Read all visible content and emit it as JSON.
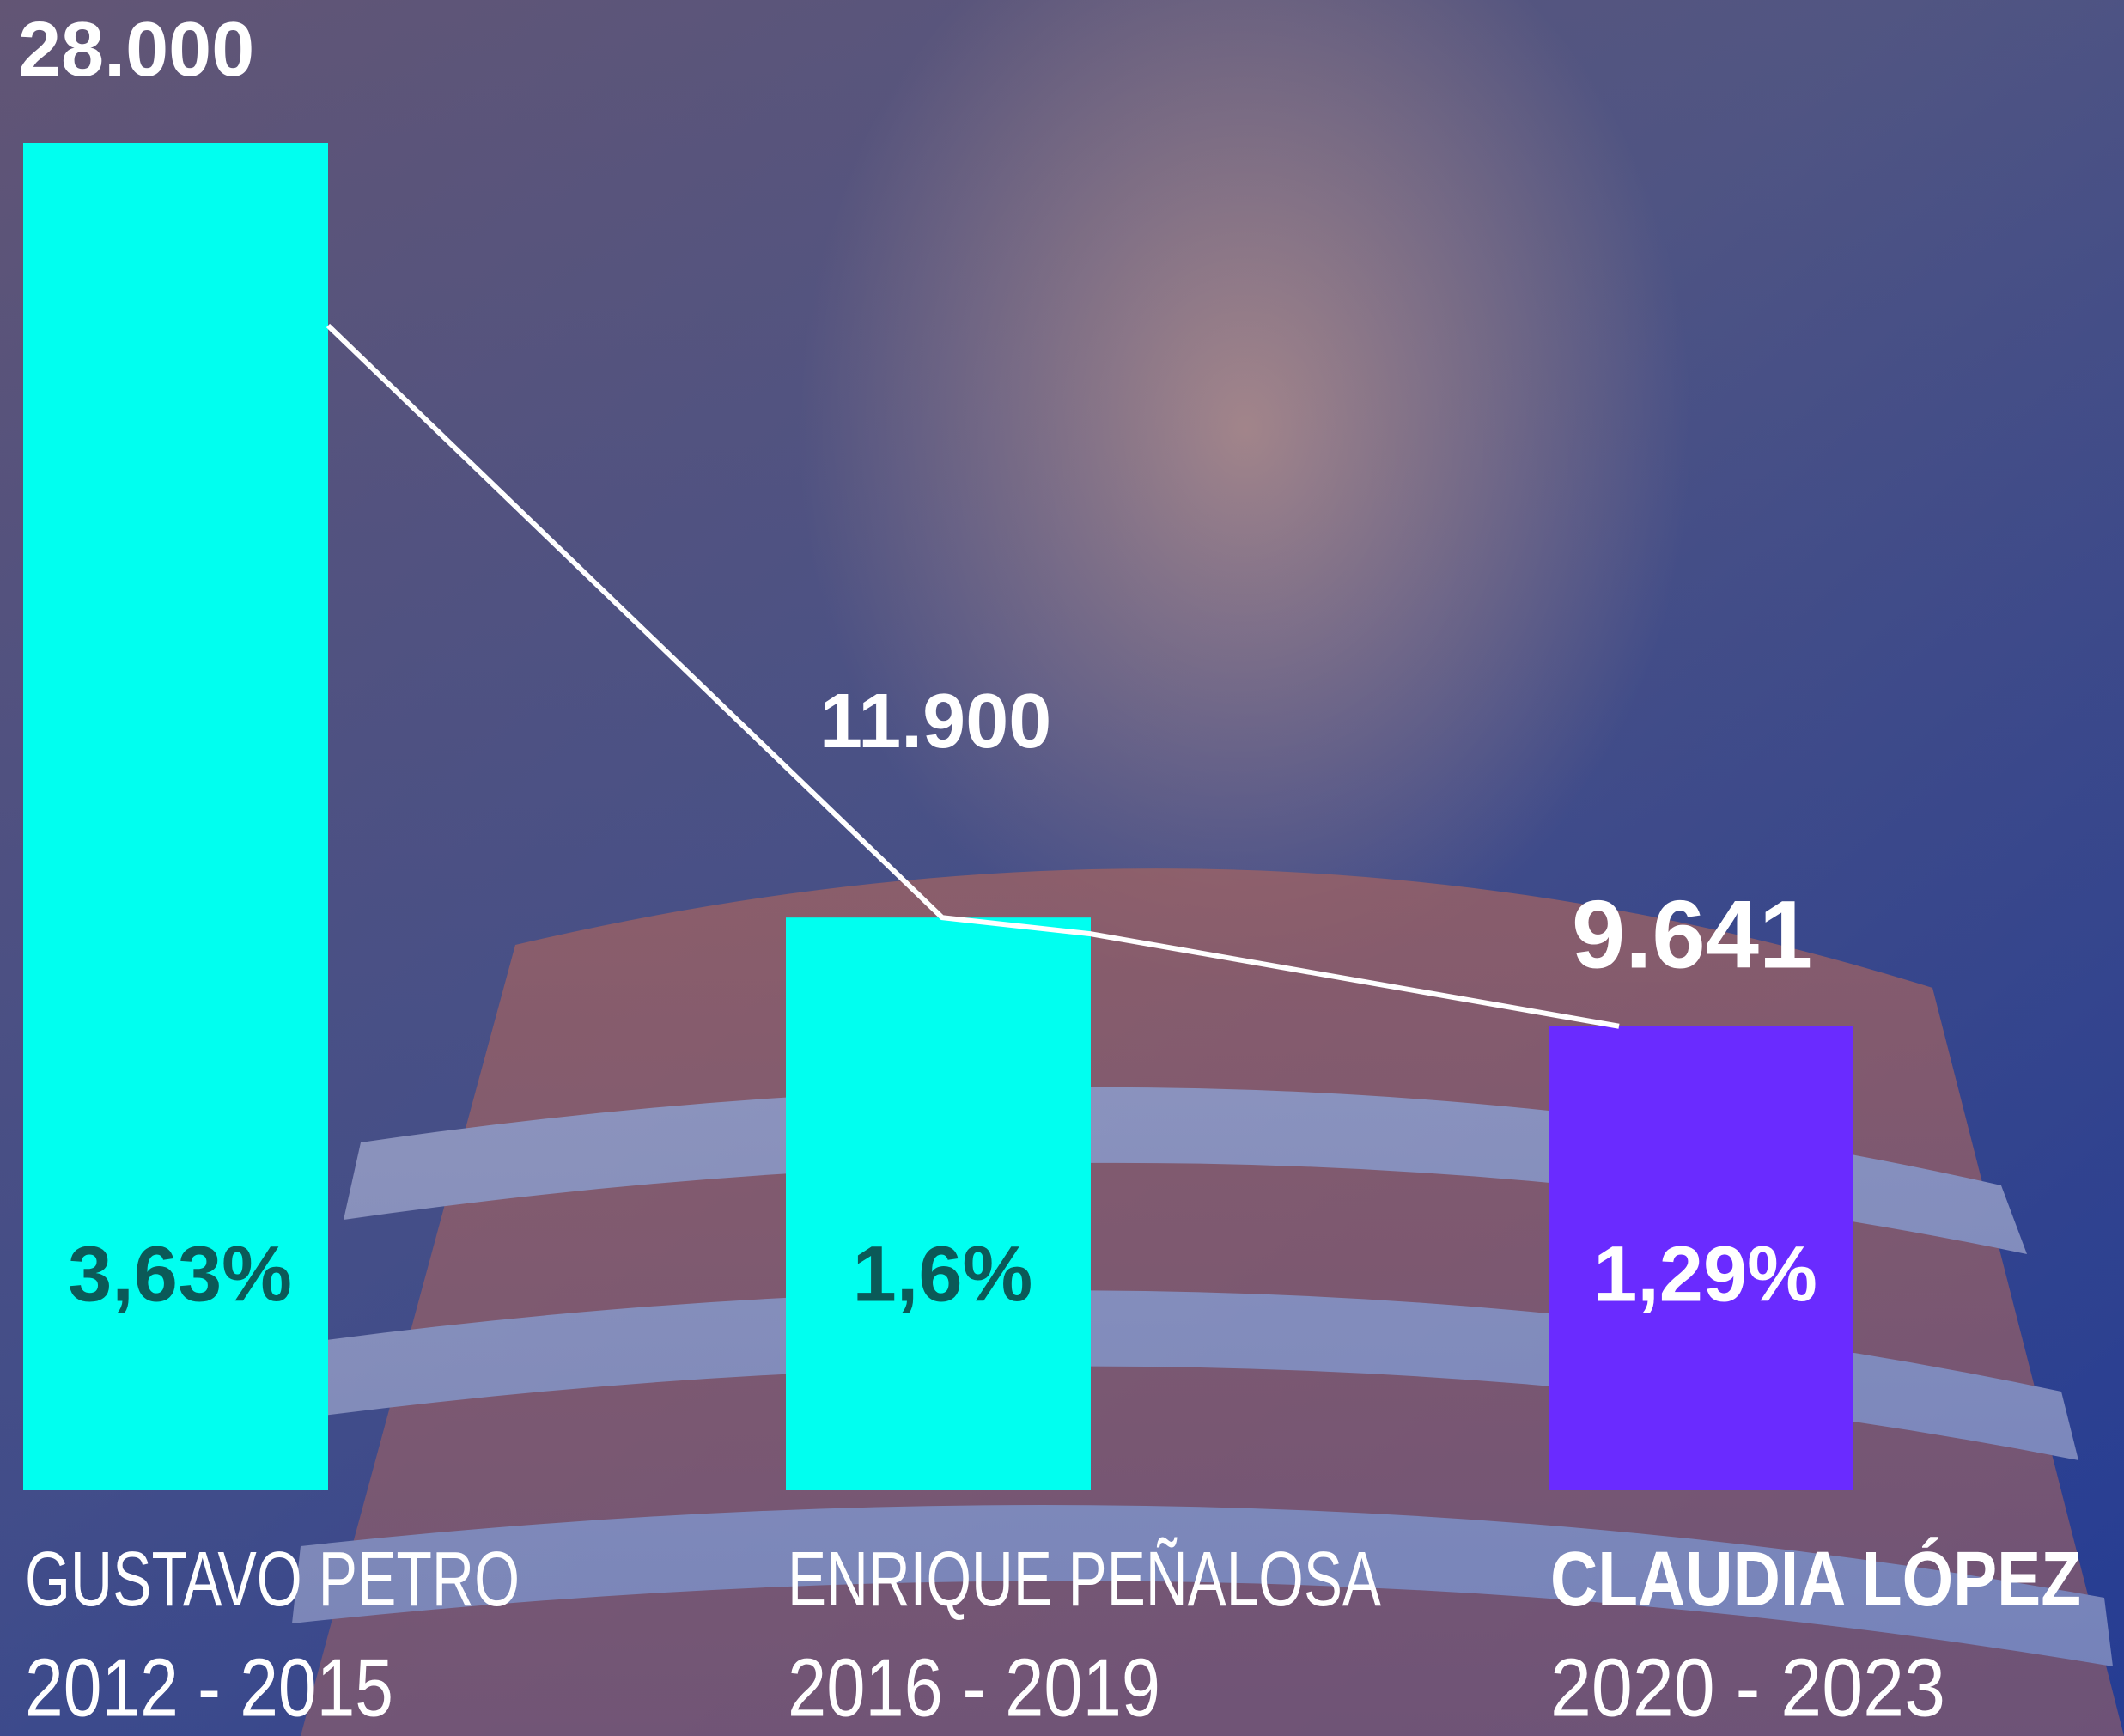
{
  "chart_data": {
    "type": "bar",
    "categories": [
      "GUSTAVO PETRO",
      "ENRIQUE PEÑALOSA",
      "CLAUDIA LÓPEZ"
    ],
    "periods": [
      "2012 - 2015",
      "2016 - 2019",
      "2020 - 2023"
    ],
    "values": [
      28000,
      11900,
      9641
    ],
    "value_labels": [
      "28.000",
      "11.900",
      "9.641"
    ],
    "shares": [
      3.63,
      1.6,
      1.29
    ],
    "share_labels": [
      "3,63%",
      "1,6%",
      "1,29%"
    ],
    "colors": [
      "#00fff0",
      "#00fff0",
      "#6a2bff"
    ],
    "share_colors": [
      "#0b5a58",
      "#0b5a58",
      "#ffffff"
    ],
    "highlight": 2,
    "ylim": [
      0,
      28000
    ]
  }
}
